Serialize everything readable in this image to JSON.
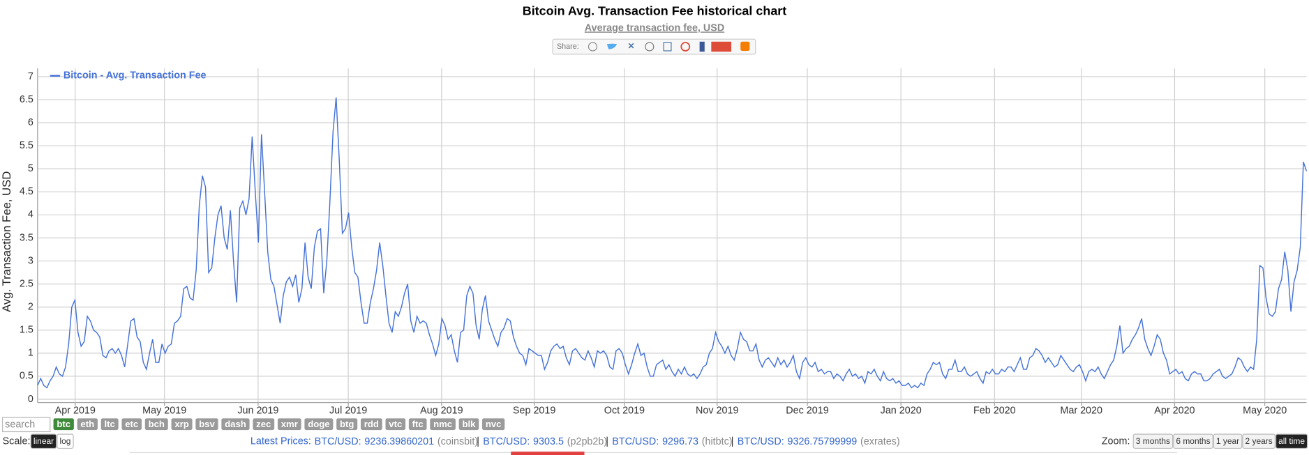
{
  "chart_data": {
    "type": "line",
    "title": "Bitcoin Avg. Transaction Fee historical chart",
    "subtitle": "Average transaction fee, USD",
    "y_label": "Avg. Transaction Fee, USD",
    "grid": true,
    "legend": "upper left",
    "xlim": [
      0,
      408
    ],
    "xticks": [
      {
        "value": 12.1,
        "label": "Apr 2019"
      },
      {
        "value": 40.8,
        "label": "May 2019"
      },
      {
        "value": 70.9,
        "label": "Jun 2019"
      },
      {
        "value": 99.9,
        "label": "Jul 2019"
      },
      {
        "value": 129.9,
        "label": "Aug 2019"
      },
      {
        "value": 159.7,
        "label": "Sep 2019"
      },
      {
        "value": 188.7,
        "label": "Oct 2019"
      },
      {
        "value": 218.5,
        "label": "Nov 2019"
      },
      {
        "value": 247.5,
        "label": "Dec 2019"
      },
      {
        "value": 277.6,
        "label": "Jan 2020"
      },
      {
        "value": 307.7,
        "label": "Feb 2020"
      },
      {
        "value": 335.6,
        "label": "Mar 2020"
      },
      {
        "value": 365.6,
        "label": "Apr 2020"
      },
      {
        "value": 394.6,
        "label": "May 2020"
      }
    ],
    "ylim": [
      -0.07,
      7.18
    ],
    "yticks": [
      0,
      0.5,
      1,
      1.5,
      2,
      2.5,
      3,
      3.5,
      4,
      4.5,
      5,
      5.5,
      6,
      6.5,
      7
    ],
    "x": [
      0,
      1,
      2,
      3,
      4,
      5,
      6,
      7,
      8,
      9,
      10,
      11,
      12,
      13,
      14,
      15,
      16,
      17,
      18,
      19,
      20,
      21,
      22,
      23,
      24,
      25,
      26,
      27,
      28,
      29,
      30,
      31,
      32,
      33,
      34,
      35,
      36,
      37,
      38,
      39,
      40,
      41,
      42,
      43,
      44,
      45,
      46,
      47,
      48,
      49,
      50,
      51,
      52,
      53,
      54,
      55,
      56,
      57,
      58,
      59,
      60,
      61,
      62,
      63,
      64,
      65,
      66,
      67,
      68,
      69,
      70,
      71,
      72,
      73,
      74,
      75,
      76,
      77,
      78,
      79,
      80,
      81,
      82,
      83,
      84,
      85,
      86,
      87,
      88,
      89,
      90,
      91,
      92,
      93,
      94,
      95,
      96,
      97,
      98,
      99,
      100,
      101,
      102,
      103,
      104,
      105,
      106,
      107,
      108,
      109,
      110,
      111,
      112,
      113,
      114,
      115,
      116,
      117,
      118,
      119,
      120,
      121,
      122,
      123,
      124,
      125,
      126,
      127,
      128,
      129,
      130,
      131,
      132,
      133,
      134,
      135,
      136,
      137,
      138,
      139,
      140,
      141,
      142,
      143,
      144,
      145,
      146,
      147,
      148,
      149,
      150,
      151,
      152,
      153,
      154,
      155,
      156,
      157,
      158,
      159,
      160,
      161,
      162,
      163,
      164,
      165,
      166,
      167,
      168,
      169,
      170,
      171,
      172,
      173,
      174,
      175,
      176,
      177,
      178,
      179,
      180,
      181,
      182,
      183,
      184,
      185,
      186,
      187,
      188,
      189,
      190,
      191,
      192,
      193,
      194,
      195,
      196,
      197,
      198,
      199,
      200,
      201,
      202,
      203,
      204,
      205,
      206,
      207,
      208,
      209,
      210,
      211,
      212,
      213,
      214,
      215,
      216,
      217,
      218,
      219,
      220,
      221,
      222,
      223,
      224,
      225,
      226,
      227,
      228,
      229,
      230,
      231,
      232,
      233,
      234,
      235,
      236,
      237,
      238,
      239,
      240,
      241,
      242,
      243,
      244,
      245,
      246,
      247,
      248,
      249,
      250,
      251,
      252,
      253,
      254,
      255,
      256,
      257,
      258,
      259,
      260,
      261,
      262,
      263,
      264,
      265,
      266,
      267,
      268,
      269,
      270,
      271,
      272,
      273,
      274,
      275,
      276,
      277,
      278,
      279,
      280,
      281,
      282,
      283,
      284,
      285,
      286,
      287,
      288,
      289,
      290,
      291,
      292,
      293,
      294,
      295,
      296,
      297,
      298,
      299,
      300,
      301,
      302,
      303,
      304,
      305,
      306,
      307,
      308,
      309,
      310,
      311,
      312,
      313,
      314,
      315,
      316,
      317,
      318,
      319,
      320,
      321,
      322,
      323,
      324,
      325,
      326,
      327,
      328,
      329,
      330,
      331,
      332,
      333,
      334,
      335,
      336,
      337,
      338,
      339,
      340,
      341,
      342,
      343,
      344,
      345,
      346,
      347,
      348,
      349,
      350,
      351,
      352,
      353,
      354,
      355,
      356,
      357,
      358,
      359,
      360,
      361,
      362,
      363,
      364,
      365,
      366,
      367,
      368,
      369,
      370,
      371,
      372,
      373,
      374,
      375,
      376,
      377,
      378,
      379,
      380,
      381,
      382,
      383,
      384,
      385,
      386,
      387,
      388,
      389,
      390,
      391,
      392,
      393,
      394,
      395,
      396,
      397,
      398,
      399,
      400,
      401,
      402,
      403,
      404,
      405,
      406,
      407,
      408
    ],
    "series": [
      {
        "name": "Bitcoin - Avg. Transaction Fee",
        "color": "#4572d9",
        "values": [
          0.3,
          0.45,
          0.3,
          0.25,
          0.4,
          0.5,
          0.7,
          0.55,
          0.5,
          0.7,
          1.2,
          2.0,
          2.15,
          1.45,
          1.15,
          1.25,
          1.8,
          1.7,
          1.5,
          1.45,
          1.35,
          0.95,
          0.9,
          1.05,
          1.1,
          1.0,
          1.1,
          0.95,
          0.7,
          1.2,
          1.7,
          1.75,
          1.35,
          1.25,
          0.8,
          0.65,
          1.0,
          1.3,
          0.8,
          0.8,
          1.2,
          1.0,
          1.15,
          1.2,
          1.65,
          1.7,
          1.8,
          2.4,
          2.45,
          2.2,
          2.15,
          2.8,
          4.2,
          4.85,
          4.6,
          2.75,
          2.85,
          3.5,
          4.0,
          4.2,
          3.5,
          3.25,
          4.1,
          3.0,
          2.1,
          4.15,
          4.3,
          4.0,
          4.35,
          5.7,
          4.5,
          3.4,
          5.75,
          4.5,
          3.2,
          2.6,
          2.45,
          2.05,
          1.65,
          2.25,
          2.55,
          2.65,
          2.45,
          2.7,
          2.1,
          2.4,
          3.4,
          2.65,
          2.4,
          3.3,
          3.65,
          3.7,
          2.3,
          3.0,
          4.3,
          5.8,
          6.55,
          5.2,
          3.6,
          3.7,
          4.05,
          3.3,
          2.75,
          2.65,
          2.1,
          1.65,
          1.65,
          2.1,
          2.4,
          2.8,
          3.4,
          2.9,
          2.25,
          1.65,
          1.45,
          1.9,
          1.8,
          2.0,
          2.3,
          2.5,
          1.7,
          1.45,
          1.8,
          1.65,
          1.7,
          1.65,
          1.4,
          1.2,
          0.95,
          1.2,
          1.75,
          1.6,
          1.3,
          1.4,
          1.05,
          0.8,
          1.45,
          1.5,
          2.25,
          2.45,
          2.3,
          1.6,
          1.3,
          1.95,
          2.25,
          1.7,
          1.5,
          1.3,
          1.15,
          1.45,
          1.55,
          1.75,
          1.7,
          1.35,
          1.15,
          1.0,
          0.95,
          0.75,
          1.1,
          1.05,
          1.0,
          0.95,
          0.95,
          0.65,
          0.8,
          1.05,
          1.15,
          1.2,
          1.1,
          1.15,
          0.9,
          0.75,
          1.05,
          1.1,
          1.0,
          0.9,
          0.85,
          1.05,
          0.9,
          0.7,
          1.05,
          1.0,
          1.05,
          0.95,
          0.7,
          0.65,
          1.05,
          1.1,
          1.0,
          0.75,
          0.55,
          0.75,
          1.0,
          1.2,
          0.95,
          1.0,
          0.7,
          0.5,
          0.5,
          0.75,
          0.8,
          0.85,
          0.65,
          0.75,
          0.6,
          0.5,
          0.65,
          0.55,
          0.7,
          0.55,
          0.5,
          0.55,
          0.45,
          0.55,
          0.7,
          0.75,
          1.0,
          1.1,
          1.45,
          1.25,
          1.15,
          1.0,
          1.15,
          0.95,
          0.85,
          1.1,
          1.45,
          1.3,
          1.25,
          1.05,
          1.05,
          1.2,
          0.85,
          0.7,
          0.85,
          0.9,
          0.8,
          0.7,
          0.9,
          0.75,
          0.85,
          0.7,
          0.8,
          0.95,
          0.6,
          0.45,
          0.8,
          0.9,
          0.75,
          0.7,
          0.8,
          0.6,
          0.65,
          0.55,
          0.6,
          0.6,
          0.45,
          0.55,
          0.5,
          0.4,
          0.55,
          0.65,
          0.5,
          0.55,
          0.45,
          0.5,
          0.35,
          0.6,
          0.55,
          0.65,
          0.5,
          0.4,
          0.6,
          0.45,
          0.4,
          0.45,
          0.35,
          0.4,
          0.3,
          0.3,
          0.35,
          0.25,
          0.3,
          0.25,
          0.35,
          0.3,
          0.55,
          0.65,
          0.8,
          0.75,
          0.8,
          0.55,
          0.45,
          0.65,
          0.65,
          0.85,
          0.6,
          0.6,
          0.7,
          0.55,
          0.5,
          0.55,
          0.6,
          0.45,
          0.35,
          0.6,
          0.55,
          0.65,
          0.55,
          0.55,
          0.65,
          0.6,
          0.7,
          0.7,
          0.6,
          0.75,
          0.9,
          0.65,
          0.65,
          0.9,
          0.95,
          1.1,
          1.05,
          0.95,
          0.8,
          0.9,
          0.8,
          0.7,
          0.75,
          0.95,
          0.85,
          0.75,
          0.65,
          0.6,
          0.7,
          0.75,
          0.6,
          0.4,
          0.6,
          0.65,
          0.6,
          0.7,
          0.55,
          0.45,
          0.6,
          0.75,
          0.85,
          1.15,
          1.6,
          1.0,
          1.1,
          1.15,
          1.3,
          1.4,
          1.55,
          1.75,
          1.3,
          1.1,
          0.95,
          1.15,
          1.4,
          1.3,
          1.0,
          0.85,
          0.55,
          0.6,
          0.65,
          0.55,
          0.6,
          0.45,
          0.4,
          0.55,
          0.6,
          0.55,
          0.55,
          0.4,
          0.4,
          0.45,
          0.55,
          0.6,
          0.65,
          0.5,
          0.45,
          0.5,
          0.55,
          0.7,
          0.9,
          0.85,
          0.7,
          0.6,
          0.7,
          0.65,
          1.3,
          2.9,
          2.85,
          2.2,
          1.85,
          1.8,
          1.9,
          2.4,
          2.6,
          3.2,
          2.8,
          1.9,
          2.55,
          2.8,
          3.3,
          5.15,
          4.95
        ]
      }
    ]
  },
  "ui": {
    "share_label": "Share:",
    "search_placeholder": "search",
    "coins": [
      "btc",
      "eth",
      "ltc",
      "etc",
      "bch",
      "xrp",
      "bsv",
      "dash",
      "zec",
      "xmr",
      "doge",
      "btg",
      "rdd",
      "vtc",
      "ftc",
      "nmc",
      "blk",
      "nvc"
    ],
    "selected_coin": 0,
    "scale_label": "Scale:",
    "scales": [
      "linear",
      "log"
    ],
    "selected_scale": 0,
    "prices_label": "Latest Prices:",
    "prices": [
      {
        "pair": "BTC/USD:",
        "value": "9236.39860201",
        "source": "(coinsbit)"
      },
      {
        "pair": "BTC/USD:",
        "value": "9303.5",
        "source": "(p2pb2b)"
      },
      {
        "pair": "BTC/USD:",
        "value": "9296.73",
        "source": "(hitbtc)"
      },
      {
        "pair": "BTC/USD:",
        "value": "9326.75799999",
        "source": "(exrates)"
      }
    ],
    "zoom_label": "Zoom:",
    "zooms": [
      "3 months",
      "6 months",
      "1 year",
      "2 years",
      "all time"
    ],
    "selected_zoom": 4
  }
}
